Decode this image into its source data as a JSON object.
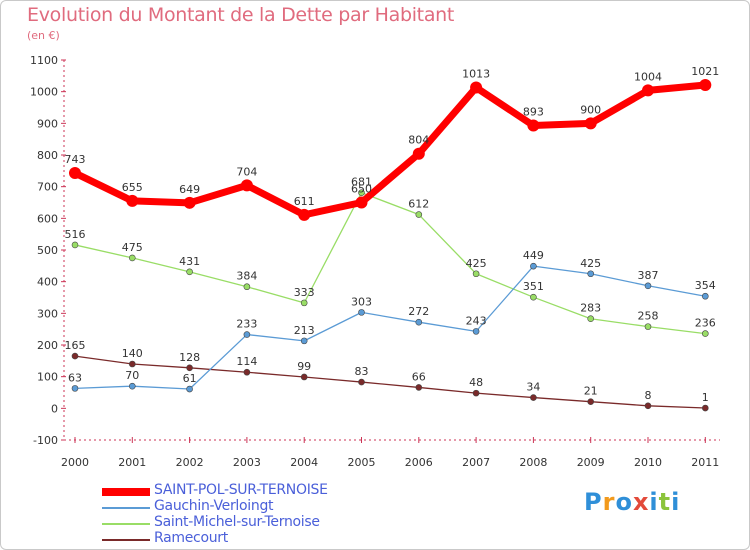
{
  "header": {
    "title": "Evolution du Montant de la Dette par Habitant",
    "subtitle": "(en €)"
  },
  "logo": {
    "letters": [
      "P",
      "r",
      "o",
      "x",
      "i",
      "t",
      "i"
    ],
    "colors": [
      "#2f8fd8",
      "#f29a1d",
      "#2f8fd8",
      "#e34a3a",
      "#2f8fd8",
      "#8cc43c",
      "#2f8fd8"
    ]
  },
  "chart_data": {
    "type": "line",
    "title": "Evolution du Montant de la Dette par Habitant",
    "ylabel": "(en €)",
    "xlabel": "",
    "x": [
      "2000",
      "2001",
      "2002",
      "2003",
      "2004",
      "2005",
      "2006",
      "2007",
      "2008",
      "2009",
      "2010",
      "2011"
    ],
    "ylim": [
      -100,
      1100
    ],
    "yticks": [
      "-100",
      "0",
      "100",
      "200",
      "300",
      "400",
      "500",
      "600",
      "700",
      "800",
      "900",
      "1000",
      "1100"
    ],
    "grid": false,
    "legend_position": "bottom-left",
    "series": [
      {
        "name": "SAINT-POL-SUR-TERNOISE",
        "color": "#ff0000",
        "values": [
          743,
          655,
          649,
          704,
          611,
          650,
          804,
          1013,
          893,
          900,
          1004,
          1021
        ],
        "labels": [
          "743",
          "655",
          "649",
          "704",
          "611",
          "650",
          "804",
          "1013",
          "893",
          "900",
          "1004",
          "1021"
        ]
      },
      {
        "name": "Gauchin-Verloingt",
        "color": "#5b9bd5",
        "values": [
          63,
          70,
          61,
          233,
          213,
          303,
          272,
          243,
          449,
          425,
          387,
          354
        ],
        "labels": [
          "63",
          "70",
          "61",
          "233",
          "213",
          "303",
          "272",
          "243",
          "449",
          "425",
          "387",
          "354"
        ]
      },
      {
        "name": "Saint-Michel-sur-Ternoise",
        "color": "#99dd66",
        "values": [
          516,
          475,
          431,
          384,
          333,
          681,
          612,
          425,
          351,
          283,
          258,
          236
        ],
        "labels": [
          "516",
          "475",
          "431",
          "384",
          "333",
          "681",
          "612",
          "425",
          "351",
          "283",
          "258",
          "236"
        ]
      },
      {
        "name": "Ramecourt",
        "color": "#7a2a2a",
        "values": [
          165,
          140,
          128,
          114,
          99,
          83,
          66,
          48,
          34,
          21,
          8,
          1
        ],
        "labels": [
          "165",
          "140",
          "128",
          "114",
          "99",
          "83",
          "66",
          "48",
          "34",
          "21",
          "8",
          "1"
        ]
      }
    ]
  }
}
